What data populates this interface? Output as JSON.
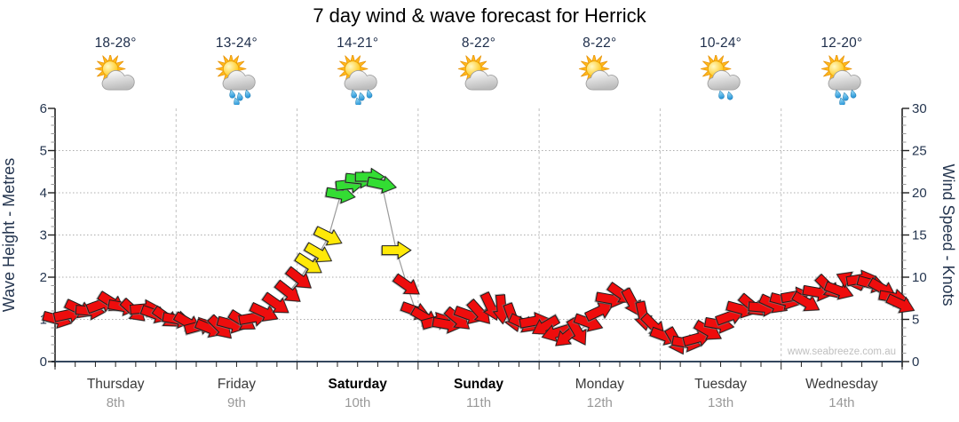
{
  "title": "7 day wind & wave forecast for Herrick",
  "watermark": "www.seabreeze.com.au",
  "days": [
    {
      "name": "Thursday",
      "date": "8th",
      "temp": "18-28°",
      "icon": "sun-cloud",
      "weekend": false,
      "drops": 0
    },
    {
      "name": "Friday",
      "date": "9th",
      "temp": "13-24°",
      "icon": "sun-cloud-rain",
      "weekend": false,
      "drops": 4
    },
    {
      "name": "Saturday",
      "date": "10th",
      "temp": "14-21°",
      "icon": "sun-cloud-rain",
      "weekend": true,
      "drops": 4
    },
    {
      "name": "Sunday",
      "date": "11th",
      "temp": "8-22°",
      "icon": "sun-cloud",
      "weekend": true,
      "drops": 0
    },
    {
      "name": "Monday",
      "date": "12th",
      "temp": "8-22°",
      "icon": "sun-cloud",
      "weekend": false,
      "drops": 0
    },
    {
      "name": "Tuesday",
      "date": "13th",
      "temp": "10-24°",
      "icon": "sun-cloud-showers",
      "weekend": false,
      "drops": 2
    },
    {
      "name": "Wednesday",
      "date": "14th",
      "temp": "12-20°",
      "icon": "sun-cloud-rain",
      "weekend": false,
      "drops": 4
    }
  ],
  "axis_left": {
    "label": "Wave Height - Metres",
    "ticks": [
      "0",
      "1",
      "2",
      "3",
      "4",
      "5",
      "6"
    ],
    "min": 0,
    "max": 6
  },
  "axis_right": {
    "label": "Wind Speed - Knots",
    "ticks": [
      "0",
      "5",
      "10",
      "15",
      "20",
      "25",
      "30"
    ],
    "min": 0,
    "max": 30
  },
  "colors": {
    "arrow_red": "#ee0d0d",
    "arrow_yellow": "#ffe908",
    "arrow_green": "#33dd33",
    "arrow_outline": "#1c1c1c",
    "bottom_axis": "#33475e",
    "side_axis": "#222222",
    "grid": "#adadad",
    "separator": "#c0c0c0",
    "line": "#9a9a9a",
    "tick_text": "#24354f",
    "temp_text": "#1d2d4a",
    "day_text": "#3a3a3a",
    "weekend_text": "#000000",
    "date_text": "#999999",
    "watermark_text": "#bfbfbf"
  },
  "chart_data": {
    "type": "line",
    "subtype": "wind-arrow-glyph-timeseries",
    "title": "7 day wind & wave forecast for Herrick",
    "x": {
      "unit": "days",
      "categories": [
        "Thursday 8th",
        "Friday 9th",
        "Saturday 10th",
        "Sunday 11th",
        "Monday 12th",
        "Tuesday 13th",
        "Wednesday 14th"
      ],
      "ticks_per_day": 6
    },
    "y_left": {
      "label": "Wave Height - Metres",
      "range": [
        0,
        6
      ],
      "gridlines": [
        1,
        2,
        3,
        4,
        5
      ]
    },
    "y_right": {
      "label": "Wind Speed - Knots",
      "range": [
        0,
        30
      ],
      "gridlines": [
        5,
        10,
        15,
        20,
        25
      ]
    },
    "grid": "dotted horizontal at each metre / 5 knots, dashed vertical day separators",
    "legend_position": "none",
    "arrow_format": [
      "day_offset_0to7",
      "wind_knots",
      "direction_deg_0isEast",
      "color r|y|g"
    ],
    "arrows": [
      [
        0.02,
        5.0,
        15,
        "r"
      ],
      [
        0.11,
        5.6,
        -12,
        "r"
      ],
      [
        0.2,
        6.2,
        25,
        "r"
      ],
      [
        0.29,
        6.0,
        5,
        "r"
      ],
      [
        0.38,
        6.8,
        -20,
        "r"
      ],
      [
        0.47,
        7.0,
        32,
        "r"
      ],
      [
        0.56,
        6.5,
        10,
        "r"
      ],
      [
        0.65,
        6.0,
        42,
        "r"
      ],
      [
        0.74,
        6.3,
        -5,
        "r"
      ],
      [
        0.83,
        5.6,
        20,
        "r"
      ],
      [
        0.92,
        5.2,
        35,
        "r"
      ],
      [
        1.01,
        5.0,
        10,
        "r"
      ],
      [
        1.1,
        4.6,
        30,
        "r"
      ],
      [
        1.19,
        4.2,
        -15,
        "r"
      ],
      [
        1.28,
        3.9,
        22,
        "r"
      ],
      [
        1.37,
        4.0,
        45,
        "r"
      ],
      [
        1.46,
        4.4,
        15,
        "r"
      ],
      [
        1.55,
        4.8,
        32,
        "r"
      ],
      [
        1.64,
        5.2,
        -10,
        "r"
      ],
      [
        1.73,
        5.8,
        25,
        "r"
      ],
      [
        1.83,
        6.8,
        35,
        "r"
      ],
      [
        1.93,
        8.2,
        38,
        "r"
      ],
      [
        2.02,
        9.8,
        38,
        "r"
      ],
      [
        2.1,
        11.5,
        33,
        "y"
      ],
      [
        2.18,
        12.8,
        30,
        "y"
      ],
      [
        2.26,
        14.8,
        26,
        "y"
      ],
      [
        2.36,
        19.8,
        10,
        "g"
      ],
      [
        2.44,
        21.0,
        -6,
        "g"
      ],
      [
        2.52,
        21.6,
        6,
        "g"
      ],
      [
        2.6,
        21.9,
        0,
        "g"
      ],
      [
        2.7,
        21.0,
        12,
        "g"
      ],
      [
        2.82,
        13.2,
        0,
        "y"
      ],
      [
        2.91,
        9.0,
        35,
        "r"
      ],
      [
        2.98,
        6.0,
        20,
        "r"
      ],
      [
        3.06,
        5.2,
        30,
        "r"
      ],
      [
        3.15,
        4.8,
        -15,
        "r"
      ],
      [
        3.24,
        4.4,
        10,
        "r"
      ],
      [
        3.33,
        5.0,
        40,
        "r"
      ],
      [
        3.42,
        5.5,
        20,
        "r"
      ],
      [
        3.51,
        5.8,
        48,
        "r"
      ],
      [
        3.6,
        6.5,
        65,
        "r"
      ],
      [
        3.69,
        6.2,
        85,
        "r"
      ],
      [
        3.78,
        5.2,
        70,
        "r"
      ],
      [
        3.87,
        4.5,
        25,
        "r"
      ],
      [
        3.96,
        4.8,
        -10,
        "r"
      ],
      [
        4.05,
        4.2,
        150,
        "r"
      ],
      [
        4.14,
        3.4,
        163,
        "r"
      ],
      [
        4.23,
        3.0,
        140,
        "r"
      ],
      [
        4.32,
        3.5,
        60,
        "r"
      ],
      [
        4.41,
        4.6,
        20,
        "r"
      ],
      [
        4.5,
        6.0,
        -25,
        "r"
      ],
      [
        4.59,
        7.4,
        10,
        "r"
      ],
      [
        4.68,
        8.0,
        35,
        "r"
      ],
      [
        4.77,
        7.0,
        62,
        "r"
      ],
      [
        4.86,
        5.4,
        78,
        "r"
      ],
      [
        4.95,
        4.2,
        45,
        "r"
      ],
      [
        5.04,
        3.0,
        20,
        "r"
      ],
      [
        5.13,
        2.4,
        60,
        "r"
      ],
      [
        5.22,
        2.2,
        10,
        "r"
      ],
      [
        5.31,
        2.8,
        -15,
        "r"
      ],
      [
        5.4,
        3.6,
        30,
        "r"
      ],
      [
        5.49,
        4.4,
        10,
        "r"
      ],
      [
        5.58,
        5.4,
        -20,
        "r"
      ],
      [
        5.67,
        6.2,
        15,
        "r"
      ],
      [
        5.76,
        6.6,
        40,
        "r"
      ],
      [
        5.85,
        6.4,
        5,
        "r"
      ],
      [
        5.94,
        6.8,
        25,
        "r"
      ],
      [
        6.03,
        7.2,
        15,
        "r"
      ],
      [
        6.12,
        7.8,
        -10,
        "r"
      ],
      [
        6.21,
        7.0,
        30,
        "r"
      ],
      [
        6.3,
        8.2,
        10,
        "r"
      ],
      [
        6.39,
        8.8,
        45,
        "r"
      ],
      [
        6.48,
        8.4,
        20,
        "r"
      ],
      [
        6.57,
        9.6,
        -155,
        "r"
      ],
      [
        6.66,
        9.8,
        -10,
        "r"
      ],
      [
        6.75,
        9.2,
        15,
        "r"
      ],
      [
        6.84,
        8.6,
        30,
        "r"
      ],
      [
        6.93,
        7.6,
        10,
        "r"
      ],
      [
        6.99,
        6.8,
        25,
        "r"
      ]
    ]
  }
}
